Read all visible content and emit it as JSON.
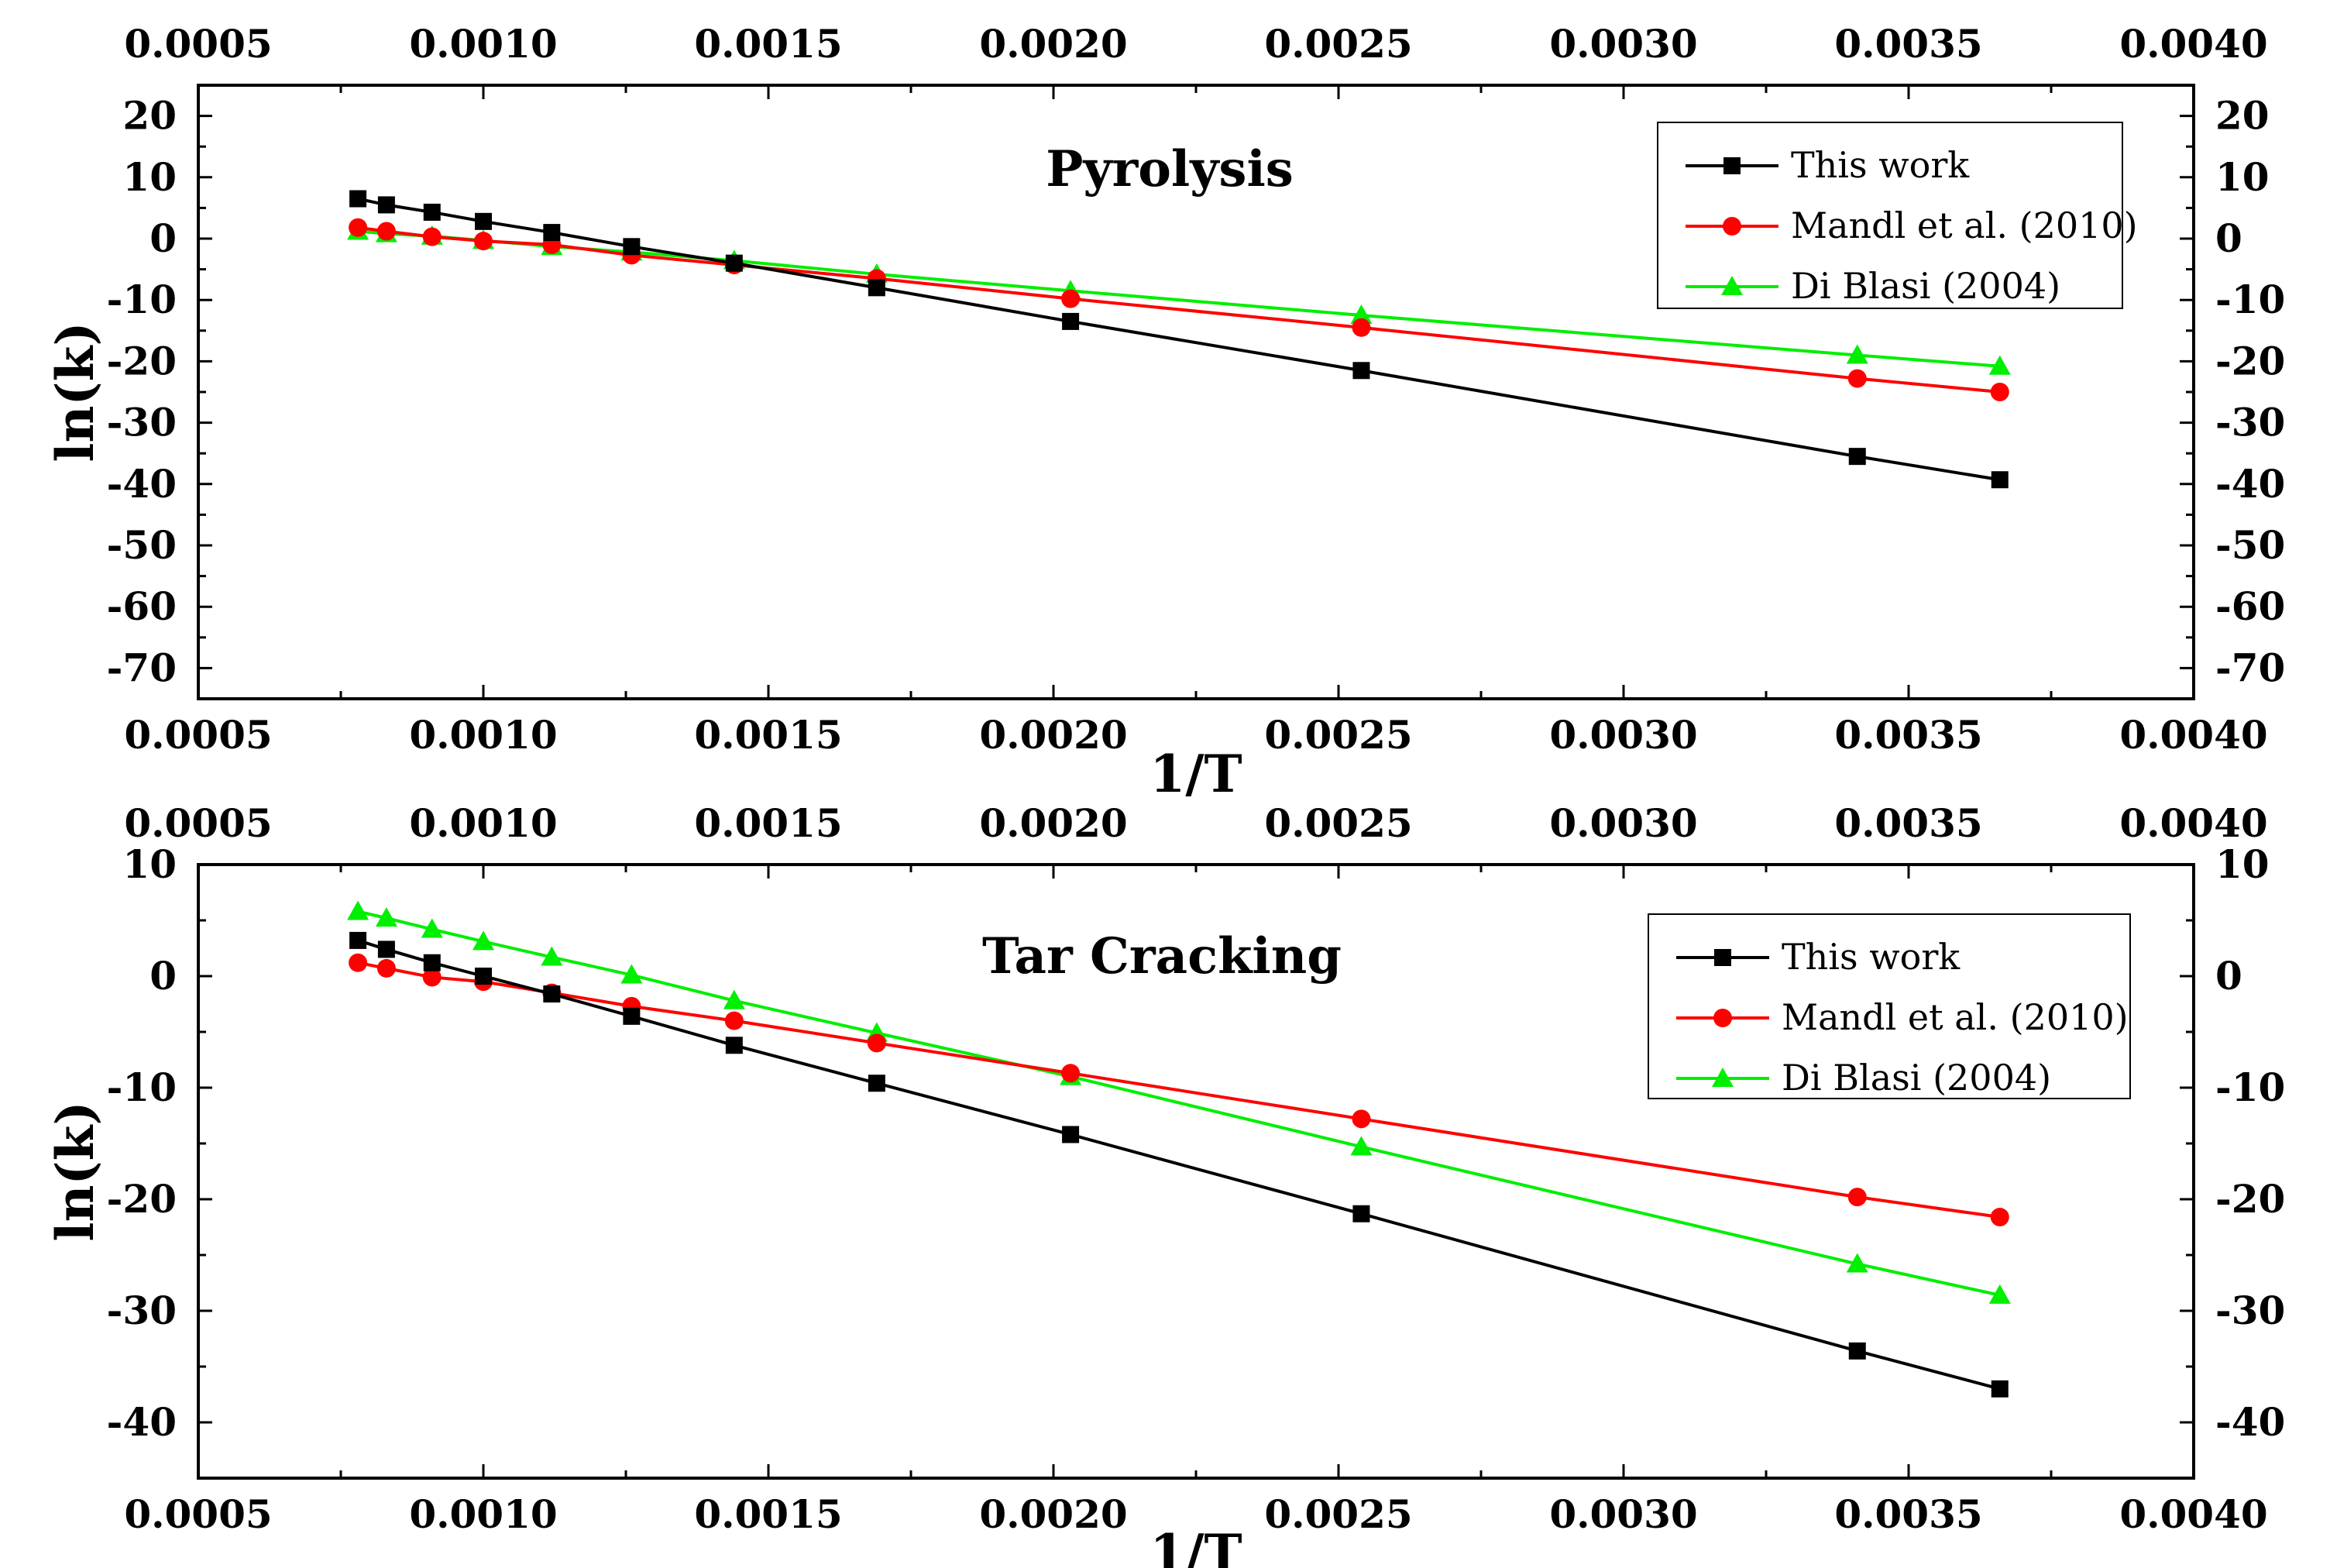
{
  "chart_data": [
    {
      "type": "line",
      "title": "Pyrolysis",
      "xlabel": "1/T",
      "ylabel": "ln(k)",
      "xlim": [
        0.0005,
        0.004
      ],
      "ylim": [
        -75,
        25
      ],
      "x_ticks": [
        "0.0005",
        "0.0010",
        "0.0015",
        "0.0020",
        "0.0025",
        "0.0030",
        "0.0035",
        "0.0040"
      ],
      "y_ticks": [
        "20",
        "10",
        "0",
        "-10",
        "-20",
        "-30",
        "-40",
        "-50",
        "-60",
        "-70"
      ],
      "legend_position": "top-right",
      "series": [
        {
          "name": "This work",
          "color": "#000000",
          "marker": "square",
          "x": [
            0.00078,
            0.00083,
            0.00091,
            0.001,
            0.00112,
            0.00126,
            0.00144,
            0.00169,
            0.00203,
            0.00254,
            0.00341,
            0.00366
          ],
          "y": [
            6.5,
            5.5,
            4.3,
            2.8,
            1.0,
            -1.3,
            -4.0,
            -8.0,
            -13.5,
            -21.5,
            -35.5,
            -39.3
          ]
        },
        {
          "name": "Mandl et al. (2010)",
          "color": "#ff0000",
          "marker": "circle",
          "x": [
            0.00078,
            0.00083,
            0.00091,
            0.001,
            0.00112,
            0.00126,
            0.00144,
            0.00169,
            0.00203,
            0.00254,
            0.00341,
            0.00366
          ],
          "y": [
            1.8,
            1.2,
            0.3,
            -0.4,
            -1.0,
            -2.7,
            -4.3,
            -6.5,
            -9.8,
            -14.5,
            -22.8,
            -25.0
          ]
        },
        {
          "name": "Di Blasi (2004)",
          "color": "#00ee00",
          "marker": "triangle",
          "x": [
            0.00078,
            0.00083,
            0.00091,
            0.001,
            0.00112,
            0.00126,
            0.00144,
            0.00169,
            0.00203,
            0.00254,
            0.00341,
            0.00366
          ],
          "y": [
            1.2,
            0.8,
            0.4,
            -0.3,
            -1.3,
            -2.2,
            -3.6,
            -5.8,
            -8.5,
            -12.5,
            -19.0,
            -20.8
          ]
        }
      ]
    },
    {
      "type": "line",
      "title": "Tar Cracking",
      "xlabel": "1/T",
      "ylabel": "ln(k)",
      "xlim": [
        0.0005,
        0.004
      ],
      "ylim": [
        -45,
        10
      ],
      "x_ticks": [
        "0.0005",
        "0.0010",
        "0.0015",
        "0.0020",
        "0.0025",
        "0.0030",
        "0.0035",
        "0.0040"
      ],
      "y_ticks": [
        "10",
        "0",
        "-10",
        "-20",
        "-30",
        "-40"
      ],
      "legend_position": "top-right",
      "series": [
        {
          "name": "This work",
          "color": "#000000",
          "marker": "square",
          "x": [
            0.00078,
            0.00083,
            0.00091,
            0.001,
            0.00112,
            0.00126,
            0.00144,
            0.00169,
            0.00203,
            0.00254,
            0.00341,
            0.00366
          ],
          "y": [
            3.2,
            2.4,
            1.2,
            0.0,
            -1.6,
            -3.6,
            -6.2,
            -9.6,
            -14.2,
            -21.3,
            -33.6,
            -37.0
          ]
        },
        {
          "name": "Mandl et al. (2010)",
          "color": "#ff0000",
          "marker": "circle",
          "x": [
            0.00078,
            0.00083,
            0.00091,
            0.001,
            0.00112,
            0.00126,
            0.00144,
            0.00169,
            0.00203,
            0.00254,
            0.00341,
            0.00366
          ],
          "y": [
            1.2,
            0.7,
            -0.1,
            -0.5,
            -1.5,
            -2.7,
            -4.0,
            -6.0,
            -8.7,
            -12.8,
            -19.8,
            -21.6
          ]
        },
        {
          "name": "Di Blasi (2004)",
          "color": "#00ee00",
          "marker": "triangle",
          "x": [
            0.00078,
            0.00083,
            0.00091,
            0.001,
            0.00112,
            0.00126,
            0.00144,
            0.00169,
            0.00203,
            0.00254,
            0.00341,
            0.00366
          ],
          "y": [
            5.8,
            5.2,
            4.2,
            3.1,
            1.7,
            0.1,
            -2.2,
            -5.1,
            -9.0,
            -15.3,
            -25.8,
            -28.6
          ]
        }
      ]
    }
  ]
}
